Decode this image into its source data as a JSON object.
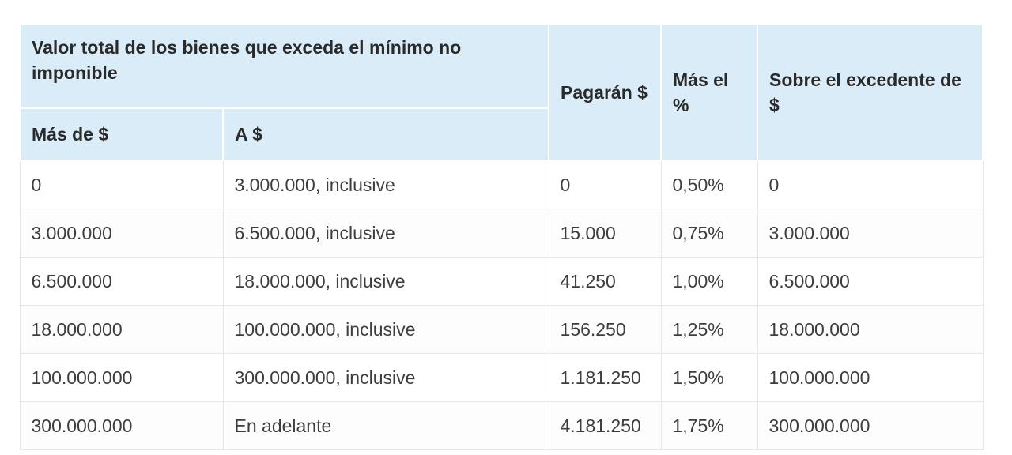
{
  "table": {
    "header": {
      "group_label": "Valor total de los bienes que exceda el mínimo no imponible",
      "col_mas_de": "Más de $",
      "col_a": "A $",
      "col_pagaran": "Pagarán $",
      "col_mas_el": "Más el %",
      "col_sobre": "Sobre el excedente de $"
    },
    "rows": [
      {
        "mas_de": "0",
        "a": "3.000.000, inclusive",
        "pagaran": "0",
        "mas_el": "0,50%",
        "sobre": "0"
      },
      {
        "mas_de": "3.000.000",
        "a": "6.500.000, inclusive",
        "pagaran": "15.000",
        "mas_el": "0,75%",
        "sobre": "3.000.000"
      },
      {
        "mas_de": "6.500.000",
        "a": "18.000.000, inclusive",
        "pagaran": "41.250",
        "mas_el": "1,00%",
        "sobre": "6.500.000"
      },
      {
        "mas_de": "18.000.000",
        "a": "100.000.000, inclusive",
        "pagaran": "156.250",
        "mas_el": "1,25%",
        "sobre": "18.000.000"
      },
      {
        "mas_de": "100.000.000",
        "a": "300.000.000, inclusive",
        "pagaran": "1.181.250",
        "mas_el": "1,50%",
        "sobre": "100.000.000"
      },
      {
        "mas_de": "300.000.000",
        "a": "En adelante",
        "pagaran": "4.181.250",
        "mas_el": "1,75%",
        "sobre": "300.000.000"
      }
    ],
    "colors": {
      "header_bg": "#d9ecf7",
      "border": "#e4e8eb",
      "text": "#3d3d3d"
    }
  }
}
